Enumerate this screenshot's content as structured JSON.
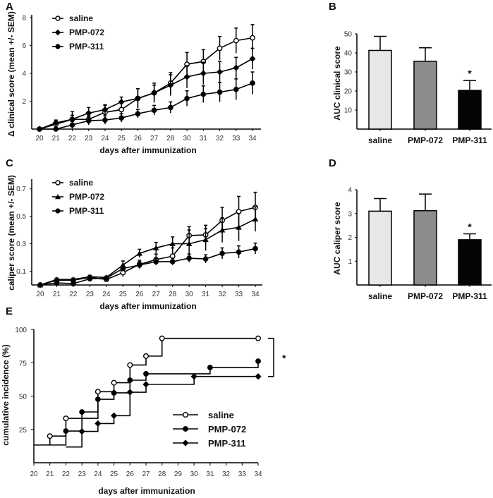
{
  "figure": {
    "panels": [
      "A",
      "B",
      "C",
      "D",
      "E"
    ]
  },
  "chart_data": [
    {
      "id": "A",
      "type": "line",
      "panel_label": "A",
      "xlabel": "days after immunization",
      "ylabel": "Δ clinical score (mean +/- SEM)",
      "x": [
        20,
        21,
        22,
        23,
        24,
        25,
        26,
        27,
        28,
        30,
        31,
        32,
        33,
        34
      ],
      "x_tick_labels": [
        "20",
        "21",
        "22",
        "23",
        "24",
        "25",
        "26",
        "27",
        "28",
        "30",
        "31",
        "32",
        "33",
        "34"
      ],
      "ylim": [
        0,
        8
      ],
      "y_ticks": [
        2,
        4,
        6,
        8
      ],
      "legend_position": "top-left",
      "series": [
        {
          "name": "saline",
          "marker": "open-circle",
          "values": [
            0,
            0.35,
            0.7,
            0.7,
            1.2,
            1.4,
            2.2,
            2.6,
            3.3,
            4.65,
            4.85,
            5.8,
            6.35,
            6.55
          ],
          "errors": [
            0,
            0.25,
            0.55,
            0.3,
            0.5,
            0.5,
            0.7,
            0.7,
            0.75,
            0.85,
            0.85,
            0.85,
            0.9,
            0.95
          ]
        },
        {
          "name": "PMP-072",
          "marker": "filled-diamond",
          "values": [
            0,
            0.45,
            0.7,
            1.15,
            1.4,
            1.95,
            2.2,
            2.6,
            3.15,
            3.75,
            4.0,
            4.1,
            4.4,
            5.05
          ],
          "errors": [
            0,
            0.2,
            0.3,
            0.4,
            0.35,
            0.35,
            0.7,
            0.55,
            0.75,
            0.8,
            0.8,
            0.75,
            0.75,
            0.75
          ]
        },
        {
          "name": "PMP-311",
          "marker": "filled-circle",
          "values": [
            0,
            0,
            0.3,
            0.6,
            0.65,
            0.8,
            1.1,
            1.35,
            1.55,
            2.2,
            2.5,
            2.65,
            2.85,
            3.3
          ],
          "errors": [
            0,
            0,
            0.25,
            0.3,
            0.3,
            0.3,
            0.3,
            0.35,
            0.4,
            0.55,
            0.6,
            0.7,
            0.75,
            0.8
          ]
        }
      ]
    },
    {
      "id": "B",
      "type": "bar",
      "panel_label": "B",
      "ylabel": "AUC clinical score",
      "categories": [
        "saline",
        "PMP-072",
        "PMP-311"
      ],
      "values": [
        41.3,
        35.6,
        20.3
      ],
      "errors": [
        7.4,
        7.1,
        5.2
      ],
      "bar_colors": [
        "#e6e7e6",
        "#8c8c8c",
        "#050505"
      ],
      "significance": [
        "",
        "",
        "*"
      ],
      "ylim": [
        0,
        50
      ],
      "y_ticks": [
        10,
        20,
        30,
        40,
        50
      ]
    },
    {
      "id": "C",
      "type": "line",
      "panel_label": "C",
      "xlabel": "days after immunization",
      "ylabel": "caliper score (mean +/- SEM)",
      "x": [
        20,
        21,
        22,
        23,
        24,
        25,
        26,
        27,
        28,
        30,
        31,
        32,
        33,
        34
      ],
      "x_tick_labels": [
        "20",
        "21",
        "22",
        "23",
        "24",
        "25",
        "26",
        "27",
        "28",
        "30",
        "31",
        "32",
        "33",
        "34"
      ],
      "ylim": [
        0,
        0.75
      ],
      "y_ticks": [
        0.1,
        0.3,
        0.5,
        0.7
      ],
      "legend_position": "top-left",
      "series": [
        {
          "name": "saline",
          "marker": "open-circle",
          "values": [
            0,
            0.035,
            0.035,
            0.055,
            0.04,
            0.09,
            0.15,
            0.185,
            0.21,
            0.36,
            0.365,
            0.47,
            0.535,
            0.565
          ],
          "errors": [
            0,
            0.01,
            0.01,
            0.01,
            0.01,
            0.03,
            0.03,
            0.04,
            0.06,
            0.065,
            0.07,
            0.095,
            0.11,
            0.11
          ]
        },
        {
          "name": "PMP-072",
          "marker": "filled-triangle",
          "values": [
            0,
            0.04,
            0.04,
            0.06,
            0.055,
            0.145,
            0.23,
            0.27,
            0.3,
            0.3,
            0.33,
            0.4,
            0.42,
            0.48
          ],
          "errors": [
            0,
            0.01,
            0.01,
            0.01,
            0.01,
            0.03,
            0.03,
            0.04,
            0.05,
            0.1,
            0.08,
            0.09,
            0.1,
            0.09
          ]
        },
        {
          "name": "PMP-311",
          "marker": "filled-circle",
          "values": [
            0,
            0.015,
            0.01,
            0.045,
            0.05,
            0.12,
            0.145,
            0.17,
            0.17,
            0.195,
            0.19,
            0.23,
            0.24,
            0.265
          ],
          "errors": [
            0,
            0.01,
            0.01,
            0.01,
            0.01,
            0.02,
            0.025,
            0.025,
            0.025,
            0.03,
            0.03,
            0.04,
            0.045,
            0.04
          ]
        }
      ]
    },
    {
      "id": "D",
      "type": "bar",
      "panel_label": "D",
      "ylabel": "AUC caliper score",
      "categories": [
        "saline",
        "PMP-072",
        "PMP-311"
      ],
      "values": [
        3.1,
        3.12,
        1.9
      ],
      "errors": [
        0.53,
        0.7,
        0.25
      ],
      "bar_colors": [
        "#e6e7e6",
        "#8c8c8c",
        "#050505"
      ],
      "significance": [
        "",
        "",
        "*"
      ],
      "ylim": [
        0,
        4
      ],
      "y_ticks": [
        1,
        2,
        3,
        4
      ]
    },
    {
      "id": "E",
      "type": "line",
      "subtype": "step",
      "panel_label": "E",
      "xlabel": "days after immunization",
      "ylabel": "cumulative incidence (%)",
      "xlim": [
        20,
        34
      ],
      "x_tick_labels": [
        "20",
        "21",
        "22",
        "23",
        "24",
        "25",
        "26",
        "27",
        "28",
        "29",
        "30",
        "31",
        "32",
        "33",
        "34"
      ],
      "ylim": [
        0,
        100
      ],
      "y_ticks": [
        25,
        50,
        75,
        100
      ],
      "legend_position": "bottom-right",
      "significance_bracket": "*",
      "series": [
        {
          "name": "saline",
          "marker": "open-circle",
          "steps": [
            [
              21,
              20
            ],
            [
              22,
              33.3
            ],
            [
              24,
              53.3
            ],
            [
              25,
              60
            ],
            [
              26,
              73.3
            ],
            [
              27,
              80
            ],
            [
              28,
              93.3
            ],
            [
              34,
              93.3
            ]
          ],
          "start": [
            21,
            13.3
          ]
        },
        {
          "name": "PMP-072",
          "marker": "filled-circle",
          "steps": [
            [
              22,
              23.8
            ],
            [
              23,
              38.1
            ],
            [
              24,
              47.6
            ],
            [
              25,
              52.4
            ],
            [
              26,
              61.9
            ],
            [
              27,
              66.7
            ],
            [
              31,
              71.4
            ],
            [
              34,
              76.2
            ]
          ],
          "start": [
            20,
            13.3
          ]
        },
        {
          "name": "PMP-311",
          "marker": "filled-diamond",
          "steps": [
            [
              23,
              23.5
            ],
            [
              24,
              29.4
            ],
            [
              25,
              35.3
            ],
            [
              26,
              52.9
            ],
            [
              27,
              58.8
            ],
            [
              30,
              64.7
            ],
            [
              34,
              64.7
            ]
          ],
          "start": [
            22,
            11.8
          ]
        }
      ]
    }
  ]
}
